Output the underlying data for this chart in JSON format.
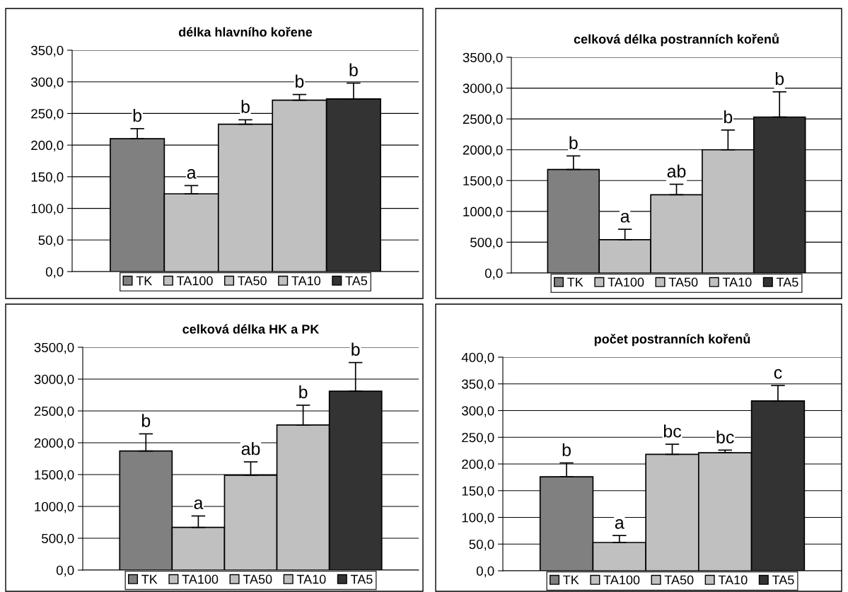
{
  "chart_data": [
    {
      "type": "bar",
      "title": "délka hlavního kořene",
      "categories": [
        null
      ],
      "grid": "y",
      "legend": "bottom",
      "tick_labels": "y",
      "ylim": [
        0,
        350
      ],
      "yticks": [
        {
          "value": 0,
          "label": "0,0"
        },
        {
          "value": 50,
          "label": "50,0"
        },
        {
          "value": 100,
          "label": "100,0"
        },
        {
          "value": 150,
          "label": "150,0"
        },
        {
          "value": 200,
          "label": "200,0"
        },
        {
          "value": 250,
          "label": "250,0"
        },
        {
          "value": 300,
          "label": "300,0"
        },
        {
          "value": 350,
          "label": "350,0"
        }
      ],
      "annotations": [
        "b",
        "a",
        "b",
        "b",
        "b"
      ],
      "series": [
        {
          "name": "TK",
          "color": "#808080",
          "values": [
            210
          ],
          "errors": [
            [
              210,
              226
            ]
          ]
        },
        {
          "name": "TA100",
          "color": "#c0c0c0",
          "values": [
            123
          ],
          "errors": [
            [
              123,
              136
            ]
          ]
        },
        {
          "name": "TA50",
          "color": "#c0c0c0",
          "values": [
            233
          ],
          "errors": [
            [
              233,
              240
            ]
          ]
        },
        {
          "name": "TA10",
          "color": "#c0c0c0",
          "values": [
            271
          ],
          "errors": [
            [
              271,
              280
            ]
          ]
        },
        {
          "name": "TA5",
          "color": "#333333",
          "values": [
            273
          ],
          "errors": [
            [
              273,
              298
            ]
          ]
        }
      ]
    },
    {
      "type": "bar",
      "title": "celková délka postranních kořenů",
      "categories": [
        null
      ],
      "grid": "y",
      "legend": "bottom",
      "tick_labels": "y",
      "ylim": [
        0,
        3500
      ],
      "yticks": [
        {
          "value": 0,
          "label": "0,0"
        },
        {
          "value": 500,
          "label": "500,0"
        },
        {
          "value": 1000,
          "label": "1000,0"
        },
        {
          "value": 1500,
          "label": "1500,0"
        },
        {
          "value": 2000,
          "label": "2000,0"
        },
        {
          "value": 2500,
          "label": "2500,0"
        },
        {
          "value": 3000,
          "label": "3000,0"
        },
        {
          "value": 3500,
          "label": "3500,0"
        }
      ],
      "annotations": [
        "b",
        "a",
        "ab",
        "b",
        "b"
      ],
      "series": [
        {
          "name": "TK",
          "color": "#808080",
          "values": [
            1680
          ],
          "errors": [
            [
              1680,
              1900
            ]
          ]
        },
        {
          "name": "TA100",
          "color": "#c0c0c0",
          "values": [
            540
          ],
          "errors": [
            [
              540,
              710
            ]
          ]
        },
        {
          "name": "TA50",
          "color": "#c0c0c0",
          "values": [
            1270
          ],
          "errors": [
            [
              1270,
              1440
            ]
          ]
        },
        {
          "name": "TA10",
          "color": "#c0c0c0",
          "values": [
            2000
          ],
          "errors": [
            [
              2000,
              2320
            ]
          ]
        },
        {
          "name": "TA5",
          "color": "#333333",
          "values": [
            2530
          ],
          "errors": [
            [
              2530,
              2940
            ]
          ]
        }
      ]
    },
    {
      "type": "bar",
      "title": "celková délka HK a PK",
      "categories": [
        null
      ],
      "grid": "y",
      "legend": "bottom",
      "tick_labels": "y",
      "ylim": [
        0,
        3500
      ],
      "yticks": [
        {
          "value": 0,
          "label": "0,0"
        },
        {
          "value": 500,
          "label": "500,0"
        },
        {
          "value": 1000,
          "label": "1000,0"
        },
        {
          "value": 1500,
          "label": "1500,0"
        },
        {
          "value": 2000,
          "label": "2000,0"
        },
        {
          "value": 2500,
          "label": "2500,0"
        },
        {
          "value": 3000,
          "label": "3000,0"
        },
        {
          "value": 3500,
          "label": "3500,0"
        }
      ],
      "annotations": [
        "b",
        "a",
        "ab",
        "b",
        "b"
      ],
      "series": [
        {
          "name": "TK",
          "color": "#808080",
          "values": [
            1870
          ],
          "errors": [
            [
              1870,
              2140
            ]
          ]
        },
        {
          "name": "TA100",
          "color": "#c0c0c0",
          "values": [
            670
          ],
          "errors": [
            [
              670,
              850
            ]
          ]
        },
        {
          "name": "TA50",
          "color": "#c0c0c0",
          "values": [
            1490
          ],
          "errors": [
            [
              1490,
              1700
            ]
          ]
        },
        {
          "name": "TA10",
          "color": "#c0c0c0",
          "values": [
            2280
          ],
          "errors": [
            [
              2280,
              2590
            ]
          ]
        },
        {
          "name": "TA5",
          "color": "#333333",
          "values": [
            2810
          ],
          "errors": [
            [
              2810,
              3260
            ]
          ]
        }
      ]
    },
    {
      "type": "bar",
      "title": "počet postranních kořenů",
      "categories": [
        null
      ],
      "grid": "y",
      "legend": "bottom",
      "tick_labels": "y",
      "ylim": [
        0,
        400
      ],
      "yticks": [
        {
          "value": 0,
          "label": "0,0"
        },
        {
          "value": 50,
          "label": "50,0"
        },
        {
          "value": 100,
          "label": "100,0"
        },
        {
          "value": 150,
          "label": "150,0"
        },
        {
          "value": 200,
          "label": "200,0"
        },
        {
          "value": 250,
          "label": "250,0"
        },
        {
          "value": 300,
          "label": "300,0"
        },
        {
          "value": 350,
          "label": "350,0"
        },
        {
          "value": 400,
          "label": "400,0"
        }
      ],
      "annotations": [
        "b",
        "a",
        "bc",
        "bc",
        "c"
      ],
      "series": [
        {
          "name": "TK",
          "color": "#808080",
          "values": [
            176
          ],
          "errors": [
            [
              176,
              202
            ]
          ]
        },
        {
          "name": "TA100",
          "color": "#c0c0c0",
          "values": [
            53
          ],
          "errors": [
            [
              53,
              66
            ]
          ]
        },
        {
          "name": "TA50",
          "color": "#c0c0c0",
          "values": [
            218
          ],
          "errors": [
            [
              218,
              237
            ]
          ]
        },
        {
          "name": "TA10",
          "color": "#c0c0c0",
          "values": [
            221
          ],
          "errors": [
            [
              221,
              226
            ]
          ]
        },
        {
          "name": "TA5",
          "color": "#333333",
          "values": [
            318
          ],
          "errors": [
            [
              318,
              347
            ]
          ]
        }
      ]
    }
  ]
}
